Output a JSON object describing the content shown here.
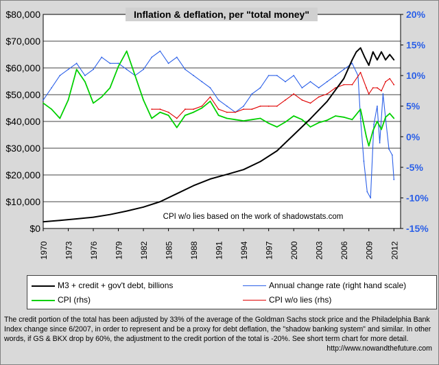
{
  "chart_data": {
    "type": "line",
    "title": "Inflation & deflation, per \"total money\"",
    "annotation": "CPI w/o lies based on the work of shadowstats.com",
    "x_range": [
      1970,
      2012.8
    ],
    "x_tick_labels": [
      "1970",
      "1973",
      "1976",
      "1979",
      "1982",
      "1985",
      "1988",
      "1991",
      "1994",
      "1997",
      "2000",
      "2003",
      "2006",
      "2009",
      "2012"
    ],
    "left_axis": {
      "range": [
        0,
        80000
      ],
      "tick_labels": [
        "$0",
        "$10,000",
        "$20,000",
        "$30,000",
        "$40,000",
        "$50,000",
        "$60,000",
        "$70,000",
        "$80,000"
      ]
    },
    "right_axis": {
      "range": [
        -15,
        20
      ],
      "tick_labels": [
        "-15%",
        "-10%",
        "-5%",
        "0%",
        "5%",
        "10%",
        "15%",
        "20%"
      ]
    },
    "grid": true,
    "series": [
      {
        "name": "M3 + credit + gov't debt, billions",
        "axis": "left",
        "color": "#000000",
        "points": [
          [
            1970,
            2500
          ],
          [
            1972,
            3000
          ],
          [
            1974,
            3600
          ],
          [
            1976,
            4200
          ],
          [
            1978,
            5200
          ],
          [
            1980,
            6500
          ],
          [
            1982,
            8000
          ],
          [
            1984,
            10000
          ],
          [
            1986,
            13000
          ],
          [
            1988,
            16000
          ],
          [
            1990,
            18500
          ],
          [
            1992,
            20200
          ],
          [
            1994,
            22000
          ],
          [
            1996,
            25000
          ],
          [
            1998,
            29000
          ],
          [
            2000,
            35000
          ],
          [
            2002,
            41000
          ],
          [
            2004,
            47500
          ],
          [
            2006,
            56000
          ],
          [
            2007,
            63000
          ],
          [
            2007.5,
            66000
          ],
          [
            2008,
            67500
          ],
          [
            2008.5,
            64000
          ],
          [
            2009,
            61000
          ],
          [
            2009.5,
            66000
          ],
          [
            2010,
            63000
          ],
          [
            2010.5,
            66000
          ],
          [
            2011,
            63000
          ],
          [
            2011.5,
            65000
          ],
          [
            2012,
            63000
          ]
        ]
      },
      {
        "name": "Annual change rate (right hand scale)",
        "axis": "right",
        "color": "#2a5fe8",
        "points": [
          [
            1970,
            6
          ],
          [
            1971,
            8
          ],
          [
            1972,
            10
          ],
          [
            1973,
            11
          ],
          [
            1974,
            12
          ],
          [
            1975,
            10
          ],
          [
            1976,
            11
          ],
          [
            1977,
            13
          ],
          [
            1978,
            12
          ],
          [
            1979,
            12
          ],
          [
            1980,
            11
          ],
          [
            1981,
            10
          ],
          [
            1982,
            11
          ],
          [
            1983,
            13
          ],
          [
            1984,
            14
          ],
          [
            1985,
            12
          ],
          [
            1986,
            13
          ],
          [
            1987,
            11
          ],
          [
            1988,
            10
          ],
          [
            1989,
            9
          ],
          [
            1990,
            8
          ],
          [
            1991,
            6
          ],
          [
            1992,
            5
          ],
          [
            1993,
            4
          ],
          [
            1994,
            5
          ],
          [
            1995,
            7
          ],
          [
            1996,
            8
          ],
          [
            1997,
            10
          ],
          [
            1998,
            10
          ],
          [
            1999,
            9
          ],
          [
            2000,
            10
          ],
          [
            2001,
            8
          ],
          [
            2002,
            9
          ],
          [
            2003,
            8
          ],
          [
            2004,
            9
          ],
          [
            2005,
            10
          ],
          [
            2006,
            11
          ],
          [
            2007,
            12
          ],
          [
            2007.7,
            10
          ],
          [
            2008,
            3
          ],
          [
            2008.4,
            -4
          ],
          [
            2008.8,
            -9
          ],
          [
            2009.2,
            -10
          ],
          [
            2009.6,
            2
          ],
          [
            2010,
            5
          ],
          [
            2010.3,
            -1
          ],
          [
            2010.7,
            7
          ],
          [
            2011,
            3
          ],
          [
            2011.4,
            -2
          ],
          [
            2011.8,
            -3
          ],
          [
            2012,
            -7
          ]
        ]
      },
      {
        "name": "CPI (rhs)",
        "axis": "right",
        "color": "#00d000",
        "points": [
          [
            1970,
            5.5
          ],
          [
            1971,
            4.5
          ],
          [
            1972,
            3
          ],
          [
            1973,
            6
          ],
          [
            1974,
            11
          ],
          [
            1975,
            9
          ],
          [
            1976,
            5.5
          ],
          [
            1977,
            6.5
          ],
          [
            1978,
            8
          ],
          [
            1979,
            11.5
          ],
          [
            1980,
            14
          ],
          [
            1981,
            10
          ],
          [
            1982,
            6
          ],
          [
            1983,
            3
          ],
          [
            1984,
            4
          ],
          [
            1985,
            3.5
          ],
          [
            1986,
            1.5
          ],
          [
            1987,
            3.5
          ],
          [
            1988,
            4
          ],
          [
            1989,
            4.7
          ],
          [
            1990,
            5.8
          ],
          [
            1991,
            3.5
          ],
          [
            1992,
            3
          ],
          [
            1993,
            2.8
          ],
          [
            1994,
            2.6
          ],
          [
            1995,
            2.8
          ],
          [
            1996,
            3
          ],
          [
            1997,
            2.2
          ],
          [
            1998,
            1.6
          ],
          [
            1999,
            2.4
          ],
          [
            2000,
            3.4
          ],
          [
            2001,
            2.8
          ],
          [
            2002,
            1.6
          ],
          [
            2003,
            2.3
          ],
          [
            2004,
            2.7
          ],
          [
            2005,
            3.4
          ],
          [
            2006,
            3.2
          ],
          [
            2007,
            2.8
          ],
          [
            2008,
            4.5
          ],
          [
            2008.7,
            0
          ],
          [
            2009,
            -1.5
          ],
          [
            2009.5,
            1
          ],
          [
            2010,
            2.5
          ],
          [
            2010.5,
            1.2
          ],
          [
            2011,
            3.2
          ],
          [
            2011.5,
            3.8
          ],
          [
            2012,
            3
          ]
        ]
      },
      {
        "name": "CPI w/o lies (rhs)",
        "axis": "right",
        "color": "#e00000",
        "points": [
          [
            1983,
            4.5
          ],
          [
            1984,
            4.5
          ],
          [
            1985,
            4
          ],
          [
            1986,
            3
          ],
          [
            1987,
            4.5
          ],
          [
            1988,
            4.5
          ],
          [
            1989,
            5
          ],
          [
            1990,
            6.5
          ],
          [
            1991,
            4.5
          ],
          [
            1992,
            4
          ],
          [
            1993,
            4
          ],
          [
            1994,
            4.5
          ],
          [
            1995,
            4.5
          ],
          [
            1996,
            5
          ],
          [
            1997,
            5
          ],
          [
            1998,
            5
          ],
          [
            1999,
            6
          ],
          [
            2000,
            7
          ],
          [
            2001,
            6
          ],
          [
            2002,
            5.5
          ],
          [
            2003,
            6.5
          ],
          [
            2004,
            7
          ],
          [
            2005,
            8
          ],
          [
            2006,
            8.5
          ],
          [
            2007,
            8.5
          ],
          [
            2008,
            10.5
          ],
          [
            2008.7,
            8
          ],
          [
            2009,
            7
          ],
          [
            2009.5,
            8
          ],
          [
            2010,
            8
          ],
          [
            2010.5,
            7.5
          ],
          [
            2011,
            9
          ],
          [
            2011.5,
            9.5
          ],
          [
            2012,
            8.5
          ]
        ]
      }
    ]
  },
  "legend": {
    "m3": "M3 + credit + gov't debt, billions",
    "annual": "Annual change rate (right hand scale)",
    "cpi": "CPI (rhs)",
    "cpi_no_lies": "CPI w/o lies (rhs)"
  },
  "colors": {
    "m3": "#000000",
    "annual": "#2a5fe8",
    "cpi": "#00d000",
    "cpi_no_lies": "#e00000"
  },
  "footnote": {
    "text": "The credit portion of the total has been adjusted by 33% of the average of the Goldman Sachs stock price and the Philadelphia Bank Index change since 6/2007, in order to represent and be a proxy for debt deflation, the \"shadow banking system\" and similar. In other words, if GS & BKX drop by 60%, the adjustment to the credit portion of the total is -20%.  See short term chart for more detail.",
    "url": "http://www.nowandthefuture.com"
  }
}
